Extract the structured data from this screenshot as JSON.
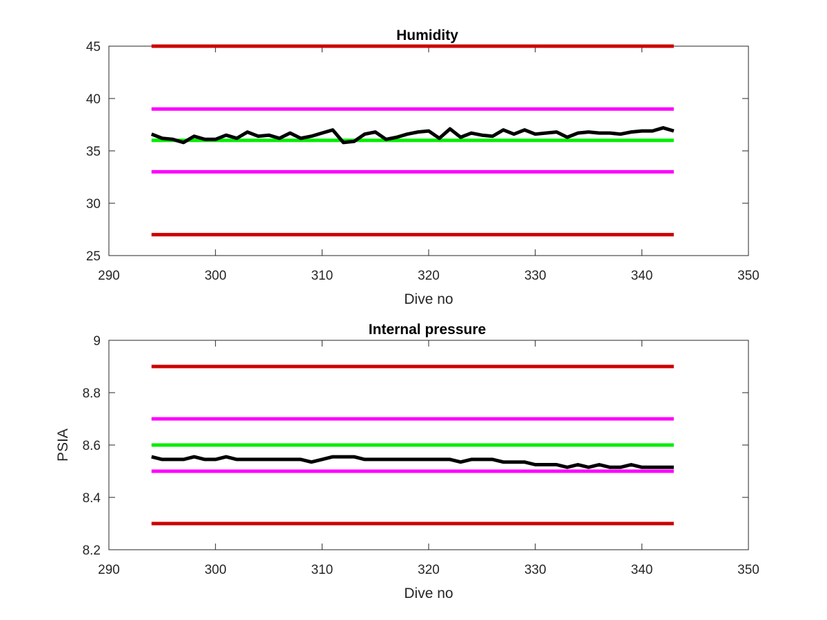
{
  "chart_data": [
    {
      "type": "line",
      "title": "Humidity",
      "xlabel": "Dive no",
      "ylabel": "",
      "xlim": [
        290,
        350
      ],
      "ylim": [
        25,
        45
      ],
      "xticks": [
        "290",
        "300",
        "310",
        "320",
        "330",
        "340",
        "350"
      ],
      "yticks": [
        "25",
        "30",
        "35",
        "40",
        "45"
      ],
      "grid": false,
      "reference_lines": [
        {
          "y": 45,
          "x": [
            294,
            343
          ],
          "color": "#cc0000"
        },
        {
          "y": 39,
          "x": [
            294,
            343
          ],
          "color": "#ff00ff"
        },
        {
          "y": 36,
          "x": [
            294,
            343
          ],
          "color": "#00ee00"
        },
        {
          "y": 33,
          "x": [
            294,
            343
          ],
          "color": "#ff00ff"
        },
        {
          "y": 27,
          "x": [
            294,
            343
          ],
          "color": "#cc0000"
        }
      ],
      "series": [
        {
          "color": "#000000",
          "x": [
            294,
            295,
            296,
            297,
            298,
            299,
            300,
            301,
            302,
            303,
            304,
            305,
            306,
            307,
            308,
            309,
            310,
            311,
            312,
            313,
            314,
            315,
            316,
            317,
            318,
            319,
            320,
            321,
            322,
            323,
            324,
            325,
            326,
            327,
            328,
            329,
            330,
            331,
            332,
            333,
            334,
            335,
            336,
            337,
            338,
            339,
            340,
            341,
            342,
            343
          ],
          "y": [
            36.6,
            36.2,
            36.1,
            35.8,
            36.4,
            36.1,
            36.1,
            36.5,
            36.2,
            36.8,
            36.4,
            36.5,
            36.2,
            36.7,
            36.2,
            36.4,
            36.7,
            37.0,
            35.8,
            35.9,
            36.6,
            36.8,
            36.1,
            36.3,
            36.6,
            36.8,
            36.9,
            36.2,
            37.1,
            36.3,
            36.7,
            36.5,
            36.4,
            37.0,
            36.6,
            37.0,
            36.6,
            36.7,
            36.8,
            36.3,
            36.7,
            36.8,
            36.7,
            36.7,
            36.6,
            36.8,
            36.9,
            36.9,
            37.2,
            36.9
          ]
        }
      ]
    },
    {
      "type": "line",
      "title": "Internal pressure",
      "xlabel": "Dive no",
      "ylabel": "PSIA",
      "xlim": [
        290,
        350
      ],
      "ylim": [
        8.2,
        9.0
      ],
      "xticks": [
        "290",
        "300",
        "310",
        "320",
        "330",
        "340",
        "350"
      ],
      "yticks": [
        "8.2",
        "8.4",
        "8.6",
        "8.8",
        "9"
      ],
      "grid": false,
      "reference_lines": [
        {
          "y": 8.9,
          "x": [
            294,
            343
          ],
          "color": "#cc0000"
        },
        {
          "y": 8.7,
          "x": [
            294,
            343
          ],
          "color": "#ff00ff"
        },
        {
          "y": 8.6,
          "x": [
            294,
            343
          ],
          "color": "#00ee00"
        },
        {
          "y": 8.5,
          "x": [
            294,
            343
          ],
          "color": "#ff00ff"
        },
        {
          "y": 8.3,
          "x": [
            294,
            343
          ],
          "color": "#cc0000"
        }
      ],
      "series": [
        {
          "color": "#000000",
          "x": [
            294,
            295,
            296,
            297,
            298,
            299,
            300,
            301,
            302,
            303,
            304,
            305,
            306,
            307,
            308,
            309,
            310,
            311,
            312,
            313,
            314,
            315,
            316,
            317,
            318,
            319,
            320,
            321,
            322,
            323,
            324,
            325,
            326,
            327,
            328,
            329,
            330,
            331,
            332,
            333,
            334,
            335,
            336,
            337,
            338,
            339,
            340,
            341,
            342,
            343
          ],
          "y": [
            8.555,
            8.545,
            8.545,
            8.545,
            8.555,
            8.545,
            8.545,
            8.555,
            8.545,
            8.545,
            8.545,
            8.545,
            8.545,
            8.545,
            8.545,
            8.535,
            8.545,
            8.555,
            8.555,
            8.555,
            8.545,
            8.545,
            8.545,
            8.545,
            8.545,
            8.545,
            8.545,
            8.545,
            8.545,
            8.535,
            8.545,
            8.545,
            8.545,
            8.535,
            8.535,
            8.535,
            8.525,
            8.525,
            8.525,
            8.515,
            8.525,
            8.515,
            8.525,
            8.515,
            8.515,
            8.525,
            8.515,
            8.515,
            8.515,
            8.515
          ]
        }
      ]
    }
  ]
}
